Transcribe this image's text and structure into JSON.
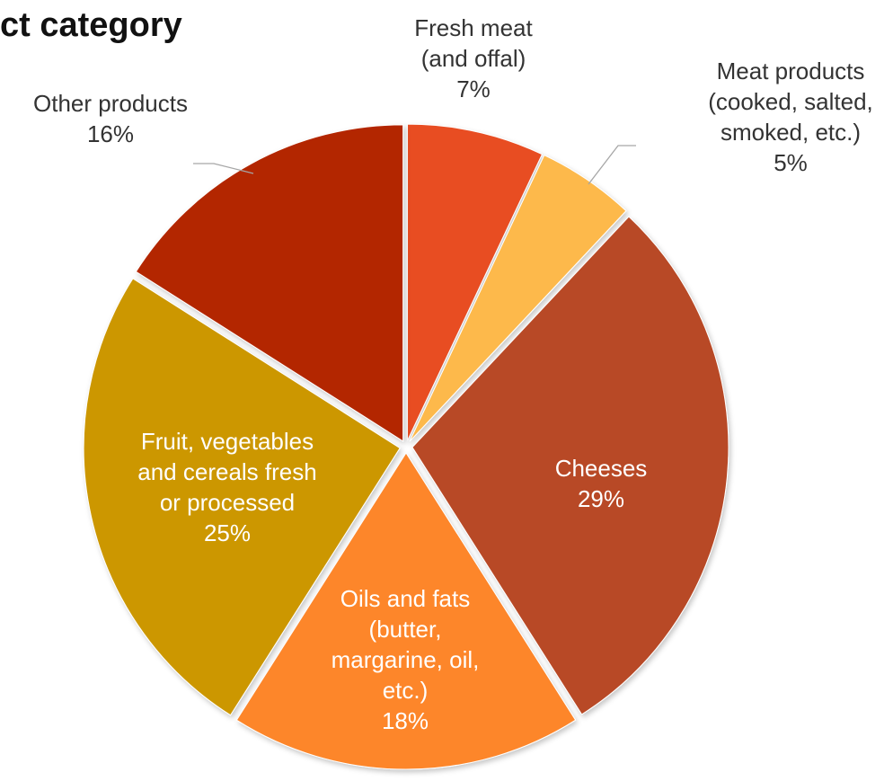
{
  "chart_data": {
    "type": "pie",
    "title": "ct category",
    "slices": [
      {
        "name": "Fresh meat (and offal)",
        "label_lines": [
          "Fresh meat",
          "(and offal)"
        ],
        "value": 7,
        "value_label": "7%",
        "color": "#E84E24",
        "label_color": "#333333"
      },
      {
        "name": "Meat products (cooked, salted, smoked, etc.)",
        "label_lines": [
          "Meat products",
          "(cooked, salted,",
          "smoked, etc.)"
        ],
        "value": 5,
        "value_label": "5%",
        "color": "#FDB94B",
        "label_color": "#333333"
      },
      {
        "name": "Cheeses",
        "label_lines": [
          "Cheeses"
        ],
        "value": 29,
        "value_label": "29%",
        "color": "#B84A26",
        "label_color": "#FFFFFF"
      },
      {
        "name": "Oils and fats (butter, margarine, oil, etc.)",
        "label_lines": [
          "Oils and fats",
          "(butter,",
          "margarine, oil,",
          "etc.)"
        ],
        "value": 18,
        "value_label": "18%",
        "color": "#FD862B",
        "label_color": "#FFFFFF"
      },
      {
        "name": "Fruit, vegetables and cereals fresh or processed",
        "label_lines": [
          "Fruit, vegetables",
          "and cereals fresh",
          "or processed"
        ],
        "value": 25,
        "value_label": "25%",
        "color": "#CC9701",
        "label_color": "#FFFFFF"
      },
      {
        "name": "Other products",
        "label_lines": [
          "Other products"
        ],
        "value": 16,
        "value_label": "16%",
        "color": "#B32801",
        "label_color": "#333333"
      }
    ],
    "legend": "none",
    "start_angle": "12 o'clock",
    "direction": "clockwise",
    "exploded": true
  }
}
